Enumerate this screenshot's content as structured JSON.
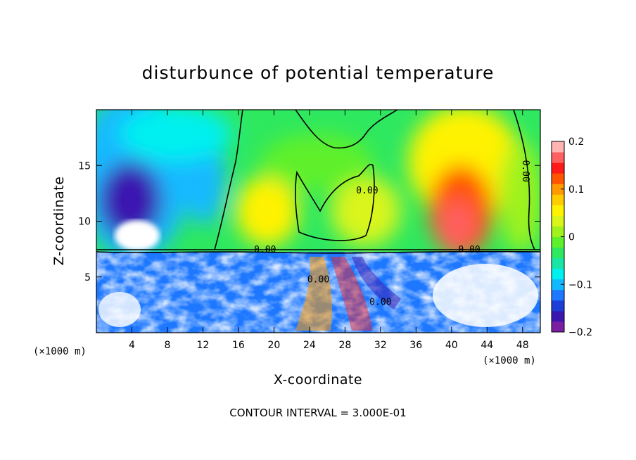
{
  "chart_data": {
    "type": "heatmap",
    "title": "disturbunce of potential temperature",
    "xlabel": "X-coordinate",
    "ylabel": "Z-coordinate",
    "x_unit": "(×1000 m)",
    "z_unit": "(×1000 m)",
    "xlim": [
      0,
      50
    ],
    "ylim": [
      0,
      20
    ],
    "x_ticks": [
      4,
      8,
      12,
      16,
      20,
      24,
      28,
      32,
      36,
      40,
      44,
      48
    ],
    "y_ticks": [
      5,
      10,
      15
    ],
    "colorbar": {
      "range": [
        -0.2,
        0.2
      ],
      "ticks": [
        {
          "value": 0.2,
          "label": "0.2"
        },
        {
          "value": 0.1,
          "label": "0.1"
        },
        {
          "value": 0,
          "label": "0"
        },
        {
          "value": -0.1,
          "label": "−0.1"
        },
        {
          "value": -0.2,
          "label": "−0.2"
        }
      ],
      "colors": [
        "#7a1fa2",
        "#3b17b0",
        "#1b3fd6",
        "#1e78ff",
        "#12b9ff",
        "#00f0f0",
        "#19e6a5",
        "#2ee860",
        "#5ef02a",
        "#9ff21c",
        "#d9f51a",
        "#fff200",
        "#ffcc00",
        "#ff9900",
        "#ff5500",
        "#ff1a1a",
        "#ff6060",
        "#ffb3b3"
      ]
    },
    "contour_labels": [
      {
        "text": "0.00",
        "x": 19,
        "z": 7.2
      },
      {
        "text": "0.00",
        "x": 30.5,
        "z": 12.5
      },
      {
        "text": "0.00",
        "x": 42,
        "z": 7.2
      },
      {
        "text": "0.00",
        "x": 48,
        "z": 14.5
      },
      {
        "text": "0.00",
        "x": 25,
        "z": 4.5
      },
      {
        "text": "0.00",
        "x": 32,
        "z": 2.5
      }
    ],
    "contour_interval_label": "CONTOUR INTERVAL = 3.000E-01"
  }
}
